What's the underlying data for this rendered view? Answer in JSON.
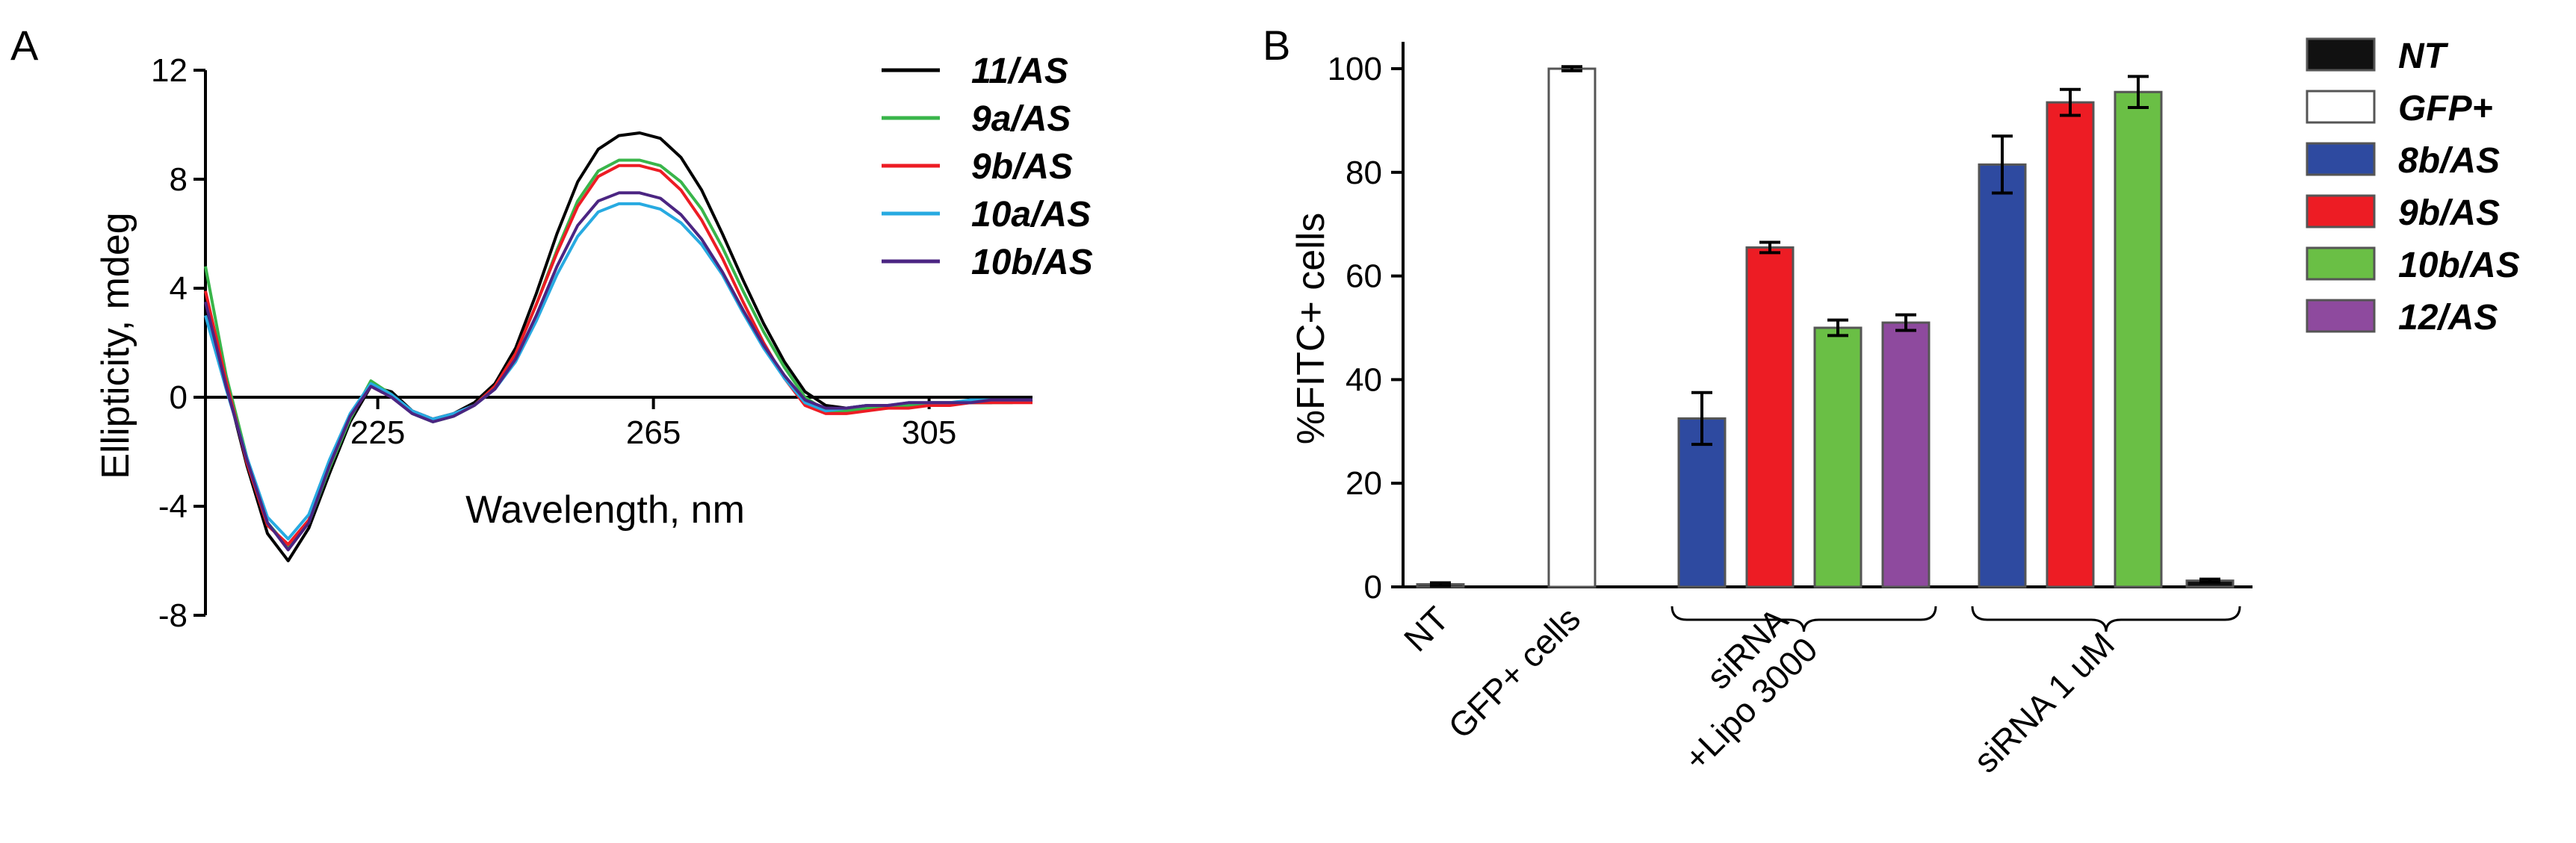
{
  "chart_data": [
    {
      "panel_label": "A",
      "type": "line",
      "title": "",
      "xlabel": "Wavelength, nm",
      "ylabel": "Ellipticity, mdeg",
      "xlim": [
        200,
        320
      ],
      "ylim": [
        -8,
        12
      ],
      "x_tick_labels": [
        "225",
        "265",
        "305"
      ],
      "y_tick_labels": [
        "12",
        "8",
        "4",
        "0",
        "-4",
        "-8"
      ],
      "legend_position": "top-right",
      "series": [
        {
          "name": "11/AS",
          "color": "#000000",
          "x": [
            200,
            203,
            206,
            209,
            212,
            215,
            218,
            221,
            224,
            227,
            230,
            233,
            236,
            239,
            242,
            245,
            248,
            251,
            254,
            257,
            260,
            263,
            266,
            269,
            272,
            275,
            278,
            281,
            284,
            287,
            290,
            293,
            296,
            299,
            302,
            305,
            308,
            311,
            314,
            317,
            320
          ],
          "y": [
            3.2,
            0.5,
            -2.5,
            -5.0,
            -6.0,
            -4.8,
            -2.8,
            -0.9,
            0.4,
            0.2,
            -0.5,
            -0.8,
            -0.6,
            -0.2,
            0.5,
            1.8,
            3.8,
            6.0,
            7.9,
            9.1,
            9.6,
            9.7,
            9.5,
            8.8,
            7.6,
            6.0,
            4.3,
            2.7,
            1.3,
            0.2,
            -0.3,
            -0.4,
            -0.3,
            -0.3,
            -0.3,
            -0.2,
            -0.2,
            -0.2,
            -0.2,
            -0.1,
            -0.1
          ]
        },
        {
          "name": "9a/AS",
          "color": "#39b54a",
          "x": [
            200,
            203,
            206,
            209,
            212,
            215,
            218,
            221,
            224,
            227,
            230,
            233,
            236,
            239,
            242,
            245,
            248,
            251,
            254,
            257,
            260,
            263,
            266,
            269,
            272,
            275,
            278,
            281,
            284,
            287,
            290,
            293,
            296,
            299,
            302,
            305,
            308,
            311,
            314,
            317,
            320
          ],
          "y": [
            4.8,
            0.8,
            -2.2,
            -4.6,
            -5.5,
            -4.6,
            -2.6,
            -0.8,
            0.6,
            0.1,
            -0.6,
            -0.9,
            -0.7,
            -0.3,
            0.4,
            1.6,
            3.4,
            5.4,
            7.2,
            8.3,
            8.7,
            8.7,
            8.5,
            7.9,
            6.9,
            5.5,
            3.9,
            2.4,
            1.1,
            0.0,
            -0.5,
            -0.5,
            -0.4,
            -0.4,
            -0.3,
            -0.3,
            -0.2,
            -0.2,
            -0.2,
            -0.2,
            -0.1
          ]
        },
        {
          "name": "9b/AS",
          "color": "#ed1c24",
          "x": [
            200,
            203,
            206,
            209,
            212,
            215,
            218,
            221,
            224,
            227,
            230,
            233,
            236,
            239,
            242,
            245,
            248,
            251,
            254,
            257,
            260,
            263,
            266,
            269,
            272,
            275,
            278,
            281,
            284,
            287,
            290,
            293,
            296,
            299,
            302,
            305,
            308,
            311,
            314,
            317,
            320
          ],
          "y": [
            3.9,
            0.6,
            -2.4,
            -4.7,
            -5.4,
            -4.5,
            -2.5,
            -0.7,
            0.4,
            0.0,
            -0.5,
            -0.8,
            -0.6,
            -0.3,
            0.4,
            1.6,
            3.4,
            5.3,
            7.0,
            8.1,
            8.5,
            8.5,
            8.3,
            7.6,
            6.5,
            5.1,
            3.5,
            2.0,
            0.7,
            -0.3,
            -0.6,
            -0.6,
            -0.5,
            -0.4,
            -0.4,
            -0.3,
            -0.3,
            -0.2,
            -0.2,
            -0.2,
            -0.2
          ]
        },
        {
          "name": "10a/AS",
          "color": "#27aae1",
          "x": [
            200,
            203,
            206,
            209,
            212,
            215,
            218,
            221,
            224,
            227,
            230,
            233,
            236,
            239,
            242,
            245,
            248,
            251,
            254,
            257,
            260,
            263,
            266,
            269,
            272,
            275,
            278,
            281,
            284,
            287,
            290,
            293,
            296,
            299,
            302,
            305,
            308,
            311,
            314,
            317,
            320
          ],
          "y": [
            3.0,
            0.3,
            -2.2,
            -4.4,
            -5.2,
            -4.3,
            -2.3,
            -0.6,
            0.5,
            0.1,
            -0.5,
            -0.8,
            -0.6,
            -0.3,
            0.3,
            1.3,
            2.8,
            4.5,
            5.9,
            6.8,
            7.1,
            7.1,
            6.9,
            6.4,
            5.6,
            4.5,
            3.1,
            1.8,
            0.7,
            -0.2,
            -0.5,
            -0.4,
            -0.3,
            -0.3,
            -0.2,
            -0.2,
            -0.2,
            -0.1,
            -0.1,
            -0.1,
            -0.1
          ]
        },
        {
          "name": "10b/AS",
          "color": "#4b2582",
          "x": [
            200,
            203,
            206,
            209,
            212,
            215,
            218,
            221,
            224,
            227,
            230,
            233,
            236,
            239,
            242,
            245,
            248,
            251,
            254,
            257,
            260,
            263,
            266,
            269,
            272,
            275,
            278,
            281,
            284,
            287,
            290,
            293,
            296,
            299,
            302,
            305,
            308,
            311,
            314,
            317,
            320
          ],
          "y": [
            3.5,
            0.4,
            -2.3,
            -4.6,
            -5.6,
            -4.6,
            -2.5,
            -0.7,
            0.4,
            0.0,
            -0.6,
            -0.9,
            -0.7,
            -0.3,
            0.3,
            1.4,
            3.0,
            4.8,
            6.3,
            7.2,
            7.5,
            7.5,
            7.3,
            6.7,
            5.8,
            4.6,
            3.2,
            1.9,
            0.8,
            -0.1,
            -0.4,
            -0.4,
            -0.3,
            -0.3,
            -0.2,
            -0.2,
            -0.2,
            -0.2,
            -0.1,
            -0.1,
            -0.1
          ]
        }
      ]
    },
    {
      "panel_label": "B",
      "type": "bar",
      "title": "",
      "xlabel": "",
      "ylabel": "%FITC+ cells",
      "ylim": [
        0,
        100
      ],
      "y_tick_labels": [
        "100",
        "80",
        "60",
        "40",
        "20",
        "0"
      ],
      "legend_position": "right",
      "legend": [
        {
          "name": "NT",
          "color": "#111111"
        },
        {
          "name": "GFP+",
          "color": "#ffffff"
        },
        {
          "name": "8b/AS",
          "color": "#2e4aa0"
        },
        {
          "name": "9b/AS",
          "color": "#ed1c24"
        },
        {
          "name": "10b/AS",
          "color": "#6abf45"
        },
        {
          "name": "12/AS",
          "color": "#8e4a9e"
        }
      ],
      "bars": [
        {
          "series": "NT",
          "value": 0.5,
          "error": 0.3,
          "color": "#111111",
          "slot": 0
        },
        {
          "series": "GFP+",
          "value": 100,
          "error": 0.4,
          "color": "#ffffff",
          "slot": 1
        },
        {
          "series": "8b/AS",
          "value": 32.5,
          "error": 5.0,
          "color": "#2e4aa0",
          "slot": 2
        },
        {
          "series": "9b/AS",
          "value": 65.5,
          "error": 1.0,
          "color": "#ed1c24",
          "slot": 3
        },
        {
          "series": "10b/AS",
          "value": 50,
          "error": 1.5,
          "color": "#6abf45",
          "slot": 4
        },
        {
          "series": "12/AS",
          "value": 51,
          "error": 1.5,
          "color": "#8e4a9e",
          "slot": 5
        },
        {
          "series": "8b/AS",
          "value": 81.5,
          "error": 5.5,
          "color": "#2e4aa0",
          "slot": 6
        },
        {
          "series": "9b/AS",
          "value": 93.5,
          "error": 2.5,
          "color": "#ed1c24",
          "slot": 7
        },
        {
          "series": "10b/AS",
          "value": 95.5,
          "error": 3.0,
          "color": "#6abf45",
          "slot": 8
        },
        {
          "series": "NT",
          "value": 1.2,
          "error": 0.3,
          "color": "#111111",
          "slot": 9
        }
      ],
      "category_labels": [
        {
          "text": "NT",
          "slots": [
            0,
            0
          ]
        },
        {
          "text": "GFP+ cells",
          "slots": [
            1,
            1
          ]
        },
        {
          "text": "siRNA\n+Lipo 3000",
          "slots": [
            2,
            5
          ],
          "bracket": true
        },
        {
          "text": "siRNA 1 uM",
          "slots": [
            6,
            9
          ],
          "bracket": true
        }
      ]
    }
  ]
}
